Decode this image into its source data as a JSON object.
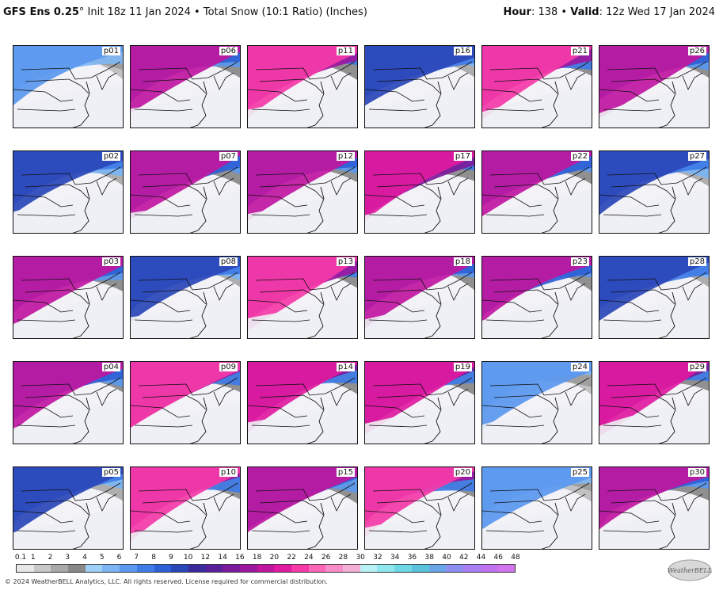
{
  "header": {
    "model": "GFS Ens 0.25",
    "degree": "°",
    "init": " Init 18z 11 Jan 2024",
    "sep1": " • ",
    "product": "Total Snow (10:1 Ratio) (Inches)",
    "hour_label": "Hour",
    "hour_value": ": 138",
    "sep2": " • ",
    "valid_label": "Valid",
    "valid_value": ": 12z Wed 17 Jan 2024"
  },
  "panels": [
    {
      "id": "p01",
      "intensity": 1
    },
    {
      "id": "p06",
      "intensity": 3
    },
    {
      "id": "p11",
      "intensity": 4
    },
    {
      "id": "p16",
      "intensity": 2
    },
    {
      "id": "p21",
      "intensity": 4
    },
    {
      "id": "p26",
      "intensity": 3
    },
    {
      "id": "p02",
      "intensity": 2
    },
    {
      "id": "p07",
      "intensity": 3
    },
    {
      "id": "p12",
      "intensity": 3
    },
    {
      "id": "p17",
      "intensity": 5
    },
    {
      "id": "p22",
      "intensity": 3
    },
    {
      "id": "p27",
      "intensity": 2
    },
    {
      "id": "p03",
      "intensity": 3
    },
    {
      "id": "p08",
      "intensity": 2
    },
    {
      "id": "p13",
      "intensity": 4
    },
    {
      "id": "p18",
      "intensity": 3
    },
    {
      "id": "p23",
      "intensity": 3
    },
    {
      "id": "p28",
      "intensity": 2
    },
    {
      "id": "p04",
      "intensity": 3
    },
    {
      "id": "p09",
      "intensity": 4
    },
    {
      "id": "p14",
      "intensity": 5
    },
    {
      "id": "p19",
      "intensity": 5
    },
    {
      "id": "p24",
      "intensity": 1
    },
    {
      "id": "p29",
      "intensity": 5
    },
    {
      "id": "p05",
      "intensity": 2
    },
    {
      "id": "p10",
      "intensity": 4
    },
    {
      "id": "p15",
      "intensity": 3
    },
    {
      "id": "p20",
      "intensity": 4
    },
    {
      "id": "p25",
      "intensity": 1
    },
    {
      "id": "p30",
      "intensity": 3
    }
  ],
  "colorbar": {
    "labels": [
      "0.1",
      "1",
      "2",
      "3",
      "4",
      "5",
      "6",
      "7",
      "8",
      "9",
      "10",
      "12",
      "14",
      "16",
      "18",
      "20",
      "22",
      "24",
      "26",
      "28",
      "30",
      "32",
      "34",
      "36",
      "38",
      "40",
      "42",
      "44",
      "46",
      "48"
    ],
    "colors": [
      "#e8e8e8",
      "#c8c8c8",
      "#a8a8a8",
      "#888888",
      "#9fd0f7",
      "#7bb5f4",
      "#5b98ef",
      "#3f7be6",
      "#2d5fd6",
      "#2a47b8",
      "#3b2a9e",
      "#5a1f9a",
      "#7b1a9b",
      "#9c179e",
      "#c0169f",
      "#e01aa0",
      "#f53aa8",
      "#fa66b8",
      "#f88cc8",
      "#f5aed6",
      "#b8f2f5",
      "#8fe8ef",
      "#6cd8e6",
      "#58c3db",
      "#6aa7e8",
      "#8d8ef0",
      "#a77ff2",
      "#bf72ef",
      "#d174ee"
    ]
  },
  "footer": "© 2024 WeatherBELL Analytics, LLC. All rights reserved. License required for commercial distribution.",
  "logo_text": "WeatherBELL"
}
